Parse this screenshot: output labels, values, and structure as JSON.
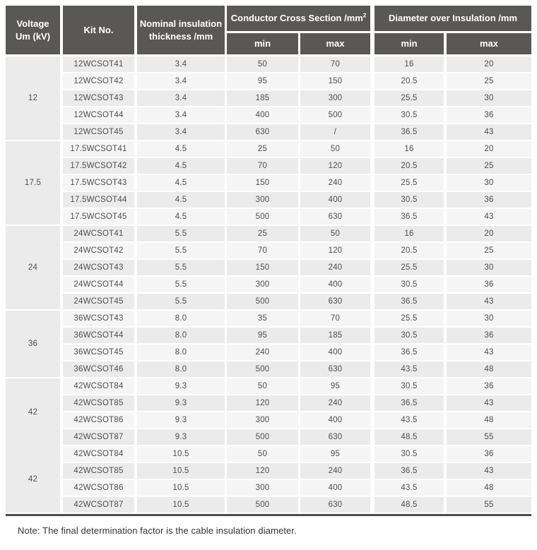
{
  "colors": {
    "header_bg": "#5a5757",
    "header_text": "#ffffff",
    "row_light_gray": "#ebebeb",
    "row_near_white": "#f5f5f5",
    "body_text": "#4f4f4f",
    "bottom_rule": "#4d4b4b"
  },
  "table": {
    "header": {
      "voltage_line1": "Voltage",
      "voltage_line2": "Um (kV)",
      "kit_no": "Kit No.",
      "nominal_line1": "Nominal insulation",
      "nominal_line2": "thickness /mm",
      "conductor_group": "Conductor Cross Section /mm",
      "conductor_group_sup": "2",
      "diameter_group": "Diameter over Insulation /mm",
      "min_label": "min",
      "max_label": "max"
    },
    "groups": [
      {
        "voltage": "12",
        "no_separator_below": false,
        "rows": [
          {
            "kit": "12WCSOT41",
            "thickness": "3.4",
            "ccs_min": "50",
            "ccs_max": "70",
            "doi_min": "16",
            "doi_max": "20"
          },
          {
            "kit": "12WCSOT42",
            "thickness": "3.4",
            "ccs_min": "95",
            "ccs_max": "150",
            "doi_min": "20.5",
            "doi_max": "25"
          },
          {
            "kit": "12WCSOT43",
            "thickness": "3.4",
            "ccs_min": "185",
            "ccs_max": "300",
            "doi_min": "25.5",
            "doi_max": "30"
          },
          {
            "kit": "12WCSOT44",
            "thickness": "3.4",
            "ccs_min": "400",
            "ccs_max": "500",
            "doi_min": "30.5",
            "doi_max": "36"
          },
          {
            "kit": "12WCSOT45",
            "thickness": "3.4",
            "ccs_min": "630",
            "ccs_max": "/",
            "doi_min": "36.5",
            "doi_max": "43"
          }
        ]
      },
      {
        "voltage": "17.5",
        "no_separator_below": false,
        "rows": [
          {
            "kit": "17.5WCSOT41",
            "thickness": "4.5",
            "ccs_min": "25",
            "ccs_max": "50",
            "doi_min": "16",
            "doi_max": "20"
          },
          {
            "kit": "17.5WCSOT42",
            "thickness": "4.5",
            "ccs_min": "70",
            "ccs_max": "120",
            "doi_min": "20.5",
            "doi_max": "25"
          },
          {
            "kit": "17.5WCSOT43",
            "thickness": "4.5",
            "ccs_min": "150",
            "ccs_max": "240",
            "doi_min": "25.5",
            "doi_max": "30"
          },
          {
            "kit": "17.5WCSOT44",
            "thickness": "4.5",
            "ccs_min": "300",
            "ccs_max": "400",
            "doi_min": "30.5",
            "doi_max": "36"
          },
          {
            "kit": "17.5WCSOT45",
            "thickness": "4.5",
            "ccs_min": "500",
            "ccs_max": "630",
            "doi_min": "36.5",
            "doi_max": "43"
          }
        ]
      },
      {
        "voltage": "24",
        "no_separator_below": false,
        "rows": [
          {
            "kit": "24WCSOT41",
            "thickness": "5.5",
            "ccs_min": "25",
            "ccs_max": "50",
            "doi_min": "16",
            "doi_max": "20"
          },
          {
            "kit": "24WCSOT42",
            "thickness": "5.5",
            "ccs_min": "70",
            "ccs_max": "120",
            "doi_min": "20.5",
            "doi_max": "25"
          },
          {
            "kit": "24WCSOT43",
            "thickness": "5.5",
            "ccs_min": "150",
            "ccs_max": "240",
            "doi_min": "25.5",
            "doi_max": "30"
          },
          {
            "kit": "24WCSOT44",
            "thickness": "5.5",
            "ccs_min": "300",
            "ccs_max": "400",
            "doi_min": "30.5",
            "doi_max": "36"
          },
          {
            "kit": "24WCSOT45",
            "thickness": "5.5",
            "ccs_min": "500",
            "ccs_max": "630",
            "doi_min": "36.5",
            "doi_max": "43"
          }
        ]
      },
      {
        "voltage": "36",
        "no_separator_below": false,
        "rows": [
          {
            "kit": "36WCSOT43",
            "thickness": "8.0",
            "ccs_min": "35",
            "ccs_max": "70",
            "doi_min": "25.5",
            "doi_max": "30"
          },
          {
            "kit": "36WCSOT44",
            "thickness": "8.0",
            "ccs_min": "95",
            "ccs_max": "185",
            "doi_min": "30.5",
            "doi_max": "36"
          },
          {
            "kit": "36WCSOT45",
            "thickness": "8.0",
            "ccs_min": "240",
            "ccs_max": "400",
            "doi_min": "36.5",
            "doi_max": "43"
          },
          {
            "kit": "36WCSOT46",
            "thickness": "8.0",
            "ccs_min": "500",
            "ccs_max": "630",
            "doi_min": "43.5",
            "doi_max": "48"
          }
        ]
      },
      {
        "voltage": "42",
        "no_separator_below": true,
        "rows": [
          {
            "kit": "42WCSOT84",
            "thickness": "9.3",
            "ccs_min": "50",
            "ccs_max": "95",
            "doi_min": "30.5",
            "doi_max": "36"
          },
          {
            "kit": "42WCSOT85",
            "thickness": "9.3",
            "ccs_min": "120",
            "ccs_max": "240",
            "doi_min": "36.5",
            "doi_max": "43"
          },
          {
            "kit": "42WCSOT86",
            "thickness": "9.3",
            "ccs_min": "300",
            "ccs_max": "400",
            "doi_min": "43.5",
            "doi_max": "48"
          },
          {
            "kit": "42WCSOT87",
            "thickness": "9.3",
            "ccs_min": "500",
            "ccs_max": "630",
            "doi_min": "48.5",
            "doi_max": "55"
          }
        ]
      },
      {
        "voltage": "42",
        "no_separator_below": false,
        "rows": [
          {
            "kit": "42WCSOT84",
            "thickness": "10.5",
            "ccs_min": "50",
            "ccs_max": "95",
            "doi_min": "30.5",
            "doi_max": "36"
          },
          {
            "kit": "42WCSOT85",
            "thickness": "10.5",
            "ccs_min": "120",
            "ccs_max": "240",
            "doi_min": "36.5",
            "doi_max": "43"
          },
          {
            "kit": "42WCSOT86",
            "thickness": "10.5",
            "ccs_min": "300",
            "ccs_max": "400",
            "doi_min": "43.5",
            "doi_max": "48"
          },
          {
            "kit": "42WCSOT87",
            "thickness": "10.5",
            "ccs_min": "500",
            "ccs_max": "630",
            "doi_min": "48.5",
            "doi_max": "55"
          }
        ]
      }
    ]
  },
  "note": "Note: The final determination factor is the cable insulation diameter."
}
